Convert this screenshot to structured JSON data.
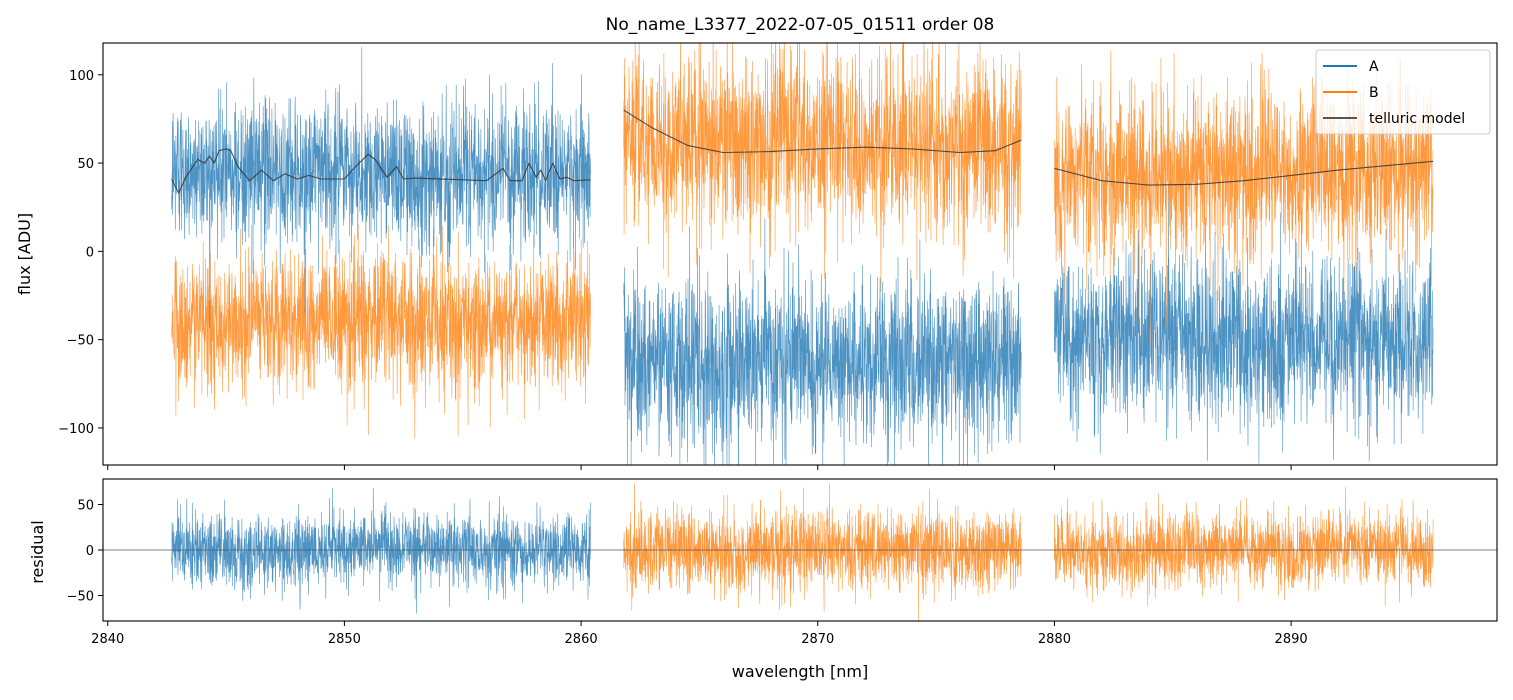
{
  "chart_data": [
    {
      "type": "line",
      "title": "No_name_L3377_2022-07-05_01511  order 08",
      "xlabel": "",
      "ylabel": "flux [ADU]",
      "xlim": [
        2839.8,
        2898.7
      ],
      "ylim": [
        -121,
        118
      ],
      "yticks": [
        100,
        50,
        0,
        -50,
        -100
      ],
      "ytick_labels": [
        "100",
        "50",
        "0",
        "−50",
        "−100"
      ],
      "legend": {
        "placement": "top-right",
        "entries": [
          "A",
          "B",
          "telluric model"
        ]
      },
      "colors": {
        "A": "#1f77b4",
        "B": "#ff7f0e",
        "telluric model": "#333333"
      },
      "segments": [
        {
          "x_range": [
            2842.7,
            2860.4
          ],
          "A_mean": 45,
          "A_std": 24,
          "B_mean": -40,
          "B_std": 22
        },
        {
          "x_range": [
            2861.8,
            2878.6
          ],
          "A_mean": -62,
          "A_std": 28,
          "B_mean": 62,
          "B_std": 30
        },
        {
          "x_range": [
            2880.0,
            2896.0
          ],
          "A_mean": -50,
          "A_std": 27,
          "B_mean": 45,
          "B_std": 28
        }
      ],
      "series": [
        {
          "name": "telluric model",
          "segments": [
            {
              "x": [
                2842.7,
                2843.0,
                2843.3,
                2843.8,
                2844.1,
                2844.3,
                2844.5,
                2844.7,
                2845.0,
                2845.2,
                2845.5,
                2846.0,
                2846.5,
                2847.0,
                2847.5,
                2848.0,
                2848.5,
                2849.0,
                2850.0,
                2850.4,
                2851.0,
                2851.3,
                2851.8,
                2852.2,
                2852.5,
                2853.0,
                2856.0,
                2856.4,
                2856.7,
                2857.0,
                2857.5,
                2857.8,
                2858.1,
                2858.3,
                2858.5,
                2858.8,
                2859.1,
                2859.4,
                2859.7,
                2860.4
              ],
              "y": [
                41,
                33,
                42,
                52,
                50,
                54,
                50,
                57,
                58,
                57,
                48,
                40,
                46,
                40,
                44,
                41,
                43,
                41,
                41,
                47,
                55,
                52,
                42,
                48,
                41,
                41.5,
                40,
                44,
                47,
                40,
                40,
                50,
                42,
                46,
                40,
                50,
                41,
                42,
                40,
                40.5
              ]
            },
            {
              "x": [
                2861.8,
                2863.0,
                2864.5,
                2866.0,
                2868.0,
                2870.0,
                2872.0,
                2874.0,
                2876.0,
                2877.5,
                2878.6
              ],
              "y": [
                80,
                70,
                60,
                56,
                56.5,
                58,
                59,
                58,
                56,
                57,
                63
              ]
            },
            {
              "x": [
                2880.0,
                2882.0,
                2884.0,
                2886.0,
                2888.0,
                2890.0,
                2892.0,
                2894.0,
                2896.0
              ],
              "y": [
                47,
                40,
                37.5,
                38,
                40,
                43,
                46,
                48.5,
                51
              ]
            }
          ]
        }
      ]
    },
    {
      "type": "line",
      "xlabel": "wavelength [nm]",
      "ylabel": "residual",
      "xlim": [
        2839.8,
        2898.7
      ],
      "ylim": [
        -78,
        78
      ],
      "xticks": [
        2840,
        2850,
        2860,
        2870,
        2880,
        2890
      ],
      "xtick_labels": [
        "2840",
        "2850",
        "2860",
        "2870",
        "2880",
        "2890"
      ],
      "yticks": [
        50,
        0,
        -50
      ],
      "ytick_labels": [
        "50",
        "0",
        "−50"
      ],
      "segments": [
        {
          "x_range": [
            2842.7,
            2860.4
          ],
          "series": "A",
          "std": 24
        },
        {
          "x_range": [
            2861.8,
            2878.6
          ],
          "series": "B",
          "std": 26
        },
        {
          "x_range": [
            2880.0,
            2896.0
          ],
          "series": "B",
          "std": 24
        }
      ]
    }
  ]
}
